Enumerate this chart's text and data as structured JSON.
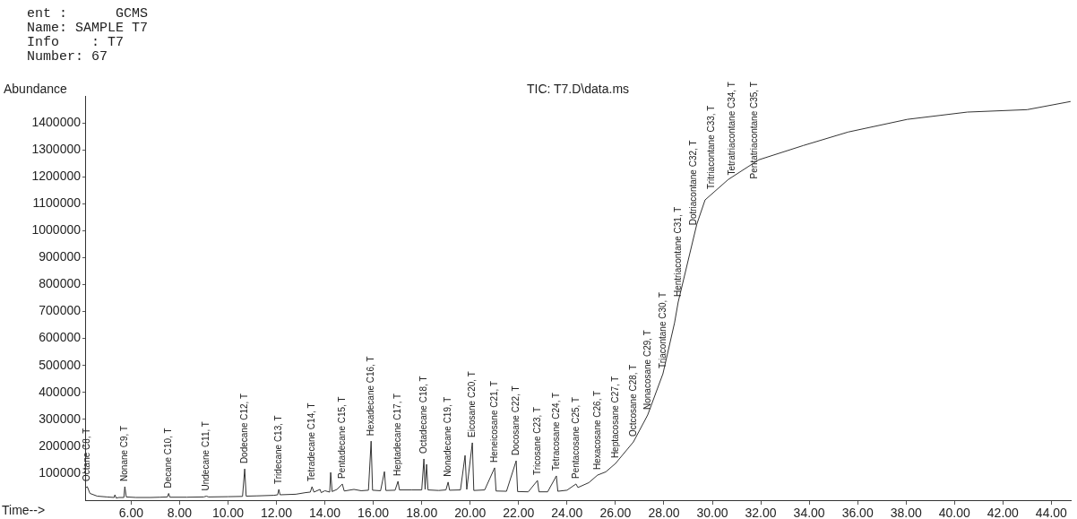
{
  "chart_data": {
    "type": "line",
    "title": "TIC: T7.D\\data.ms",
    "xlabel": "Time-->",
    "ylabel": "Abundance",
    "annotations": [
      "ent :      GCMS",
      "Name: SAMPLE T7",
      "Info    : T7",
      "Number: 67",
      {
        "text": "Octane C8, T",
        "x": 4.19,
        "y": 50000
      },
      {
        "text": "Nonane C9, T",
        "x": 5.74,
        "y": 50000
      },
      {
        "text": "Decane C10, T",
        "x": 7.55,
        "y": 25000
      },
      {
        "text": "Undecane C11, T",
        "x": 9.11,
        "y": 15000
      },
      {
        "text": "Dodecane C12, T",
        "x": 10.69,
        "y": 116000
      },
      {
        "text": "Tridecane C13, T",
        "x": 12.1,
        "y": 40000
      },
      {
        "text": "Tetradecane C14, T",
        "x": 13.47,
        "y": 50000
      },
      {
        "text": "Pentadecane C15, T",
        "x": 14.72,
        "y": 60000
      },
      {
        "text": "Hexadecane C16, T",
        "x": 15.91,
        "y": 219000
      },
      {
        "text": "Heptadecane C17, T",
        "x": 17.02,
        "y": 70000
      },
      {
        "text": "Octadecane C18, T",
        "x": 18.09,
        "y": 153000
      },
      {
        "text": "Nonadecane C19, T",
        "x": 19.09,
        "y": 67000
      },
      {
        "text": "Eicosane C20, T",
        "x": 20.09,
        "y": 213000
      },
      {
        "text": "Heneicosane C21, T",
        "x": 21.01,
        "y": 120000
      },
      {
        "text": "Docosane C22, T",
        "x": 21.9,
        "y": 146000
      },
      {
        "text": "Tricosane C23, T",
        "x": 22.78,
        "y": 73000
      },
      {
        "text": "Tetracosane C24, T",
        "x": 23.56,
        "y": 90000
      },
      {
        "text": "Pentacosane C25, T",
        "x": 24.37,
        "y": 60000
      },
      {
        "text": "Hexacosane C26, T",
        "x": 25.26,
        "y": 93000
      },
      {
        "text": "Heptacosane C27, T",
        "x": 26.0,
        "y": 136000
      },
      {
        "text": "Octcosane C28, T",
        "x": 26.74,
        "y": 216000
      },
      {
        "text": "Nonacosane C29, T",
        "x": 27.33,
        "y": 316000
      },
      {
        "text": "Triacontane C30, T",
        "x": 27.96,
        "y": 469000
      },
      {
        "text": "Hentriacontane C31, T",
        "x": 28.59,
        "y": 735000
      },
      {
        "text": "Dotriacontane C32, T",
        "x": 29.25,
        "y": 1000000
      },
      {
        "text": "Tritriacontane C33, T",
        "x": 29.99,
        "y": 1134000
      },
      {
        "text": "Tetratriacontane C34, T",
        "x": 30.81,
        "y": 1200000
      },
      {
        "text": "Pentatriacontane C35, T",
        "x": 31.73,
        "y": 1250000
      }
    ],
    "x": [
      4.11,
      4.19,
      4.3,
      4.6,
      5.0,
      5.3,
      5.33,
      5.38,
      5.5,
      5.7,
      5.74,
      5.8,
      6.2,
      6.8,
      7.2,
      7.5,
      7.55,
      7.6,
      8.3,
      9.0,
      9.11,
      9.2,
      10.0,
      10.6,
      10.69,
      10.75,
      11.2,
      11.9,
      12.05,
      12.1,
      12.15,
      12.8,
      13.2,
      13.4,
      13.47,
      13.55,
      13.8,
      13.85,
      14.0,
      14.2,
      14.24,
      14.3,
      14.5,
      14.72,
      14.8,
      15.2,
      15.5,
      15.8,
      15.91,
      15.97,
      16.3,
      16.46,
      16.52,
      16.9,
      17.02,
      17.08,
      17.6,
      18.0,
      18.09,
      18.14,
      18.2,
      18.26,
      18.7,
      19.0,
      19.09,
      19.15,
      19.6,
      19.79,
      19.86,
      20.09,
      20.15,
      20.6,
      21.01,
      21.07,
      21.5,
      21.9,
      21.96,
      22.4,
      22.78,
      22.84,
      23.2,
      23.56,
      23.62,
      24.0,
      24.37,
      24.45,
      24.9,
      25.26,
      25.6,
      26.0,
      26.74,
      27.33,
      27.96,
      28.44,
      28.59,
      29.36,
      29.7,
      30.66,
      31.92,
      33.76,
      35.61,
      38.05,
      40.53,
      43.0,
      44.78
    ],
    "values": [
      45000,
      50000,
      25000,
      15000,
      12000,
      10000,
      20000,
      8000,
      10000,
      10000,
      50000,
      12000,
      10000,
      10000,
      11000,
      12000,
      25000,
      11000,
      11000,
      12000,
      15000,
      12000,
      13000,
      14000,
      116000,
      15000,
      16000,
      18000,
      20000,
      40000,
      20000,
      22000,
      28000,
      30000,
      50000,
      30000,
      40000,
      28000,
      35000,
      30000,
      103000,
      32000,
      40000,
      60000,
      34000,
      40000,
      35000,
      37000,
      219000,
      37000,
      35000,
      106000,
      36000,
      37000,
      70000,
      38000,
      38000,
      38000,
      153000,
      40000,
      133000,
      38000,
      36000,
      38000,
      67000,
      37000,
      38000,
      166000,
      40000,
      213000,
      36000,
      38000,
      120000,
      34000,
      33000,
      146000,
      32000,
      31000,
      73000,
      31000,
      31000,
      90000,
      33000,
      37000,
      60000,
      47000,
      65000,
      93000,
      105000,
      136000,
      216000,
      316000,
      469000,
      658000,
      735000,
      1024000,
      1114000,
      1190000,
      1263000,
      1316000,
      1366000,
      1413000,
      1440000,
      1449000,
      1479000
    ],
    "color": "#333333",
    "xlim": [
      4.1,
      44.8
    ],
    "ylim": [
      0,
      1500000
    ],
    "xticks": [
      {
        "value": 6,
        "label": "6.00"
      },
      {
        "value": 8,
        "label": "8.00"
      },
      {
        "value": 10,
        "label": "10.00"
      },
      {
        "value": 12,
        "label": "12.00"
      },
      {
        "value": 14,
        "label": "14.00"
      },
      {
        "value": 16,
        "label": "16.00"
      },
      {
        "value": 18,
        "label": "18.00"
      },
      {
        "value": 20,
        "label": "20.00"
      },
      {
        "value": 22,
        "label": "22.00"
      },
      {
        "value": 24,
        "label": "24.00"
      },
      {
        "value": 26,
        "label": "26.00"
      },
      {
        "value": 28,
        "label": "28.00"
      },
      {
        "value": 30,
        "label": "30.00"
      },
      {
        "value": 32,
        "label": "32.00"
      },
      {
        "value": 34,
        "label": "34.00"
      },
      {
        "value": 36,
        "label": "36.00"
      },
      {
        "value": 38,
        "label": "38.00"
      },
      {
        "value": 40,
        "label": "40.00"
      },
      {
        "value": 42,
        "label": "42.00"
      },
      {
        "value": 44,
        "label": "44.00"
      }
    ],
    "yticks": [
      100000,
      200000,
      300000,
      400000,
      500000,
      600000,
      700000,
      800000,
      900000,
      1000000,
      1100000,
      1200000,
      1300000,
      1400000
    ],
    "grid": false,
    "legend": false,
    "marker": "none",
    "line_style": "solid"
  }
}
